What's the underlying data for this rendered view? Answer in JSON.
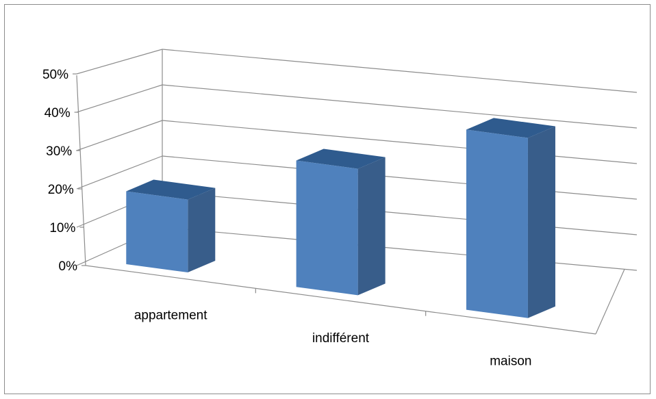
{
  "chart_data": {
    "type": "bar",
    "title": "",
    "xlabel": "",
    "ylabel": "",
    "categories": [
      "appartement",
      "indifférent",
      "maison"
    ],
    "values": [
      19,
      33,
      47
    ],
    "value_unit": "%",
    "ylim": [
      0,
      50
    ],
    "yticks": [
      "0%",
      "10%",
      "20%",
      "30%",
      "40%",
      "50%"
    ],
    "grid": true,
    "legend": "none",
    "style": "3d-columns",
    "colors": {
      "front": "#4f81bd",
      "side": "#385d8a",
      "top": "#2f5b8e",
      "grid": "#8c8c8c",
      "frame": "#8c8c8c"
    }
  }
}
